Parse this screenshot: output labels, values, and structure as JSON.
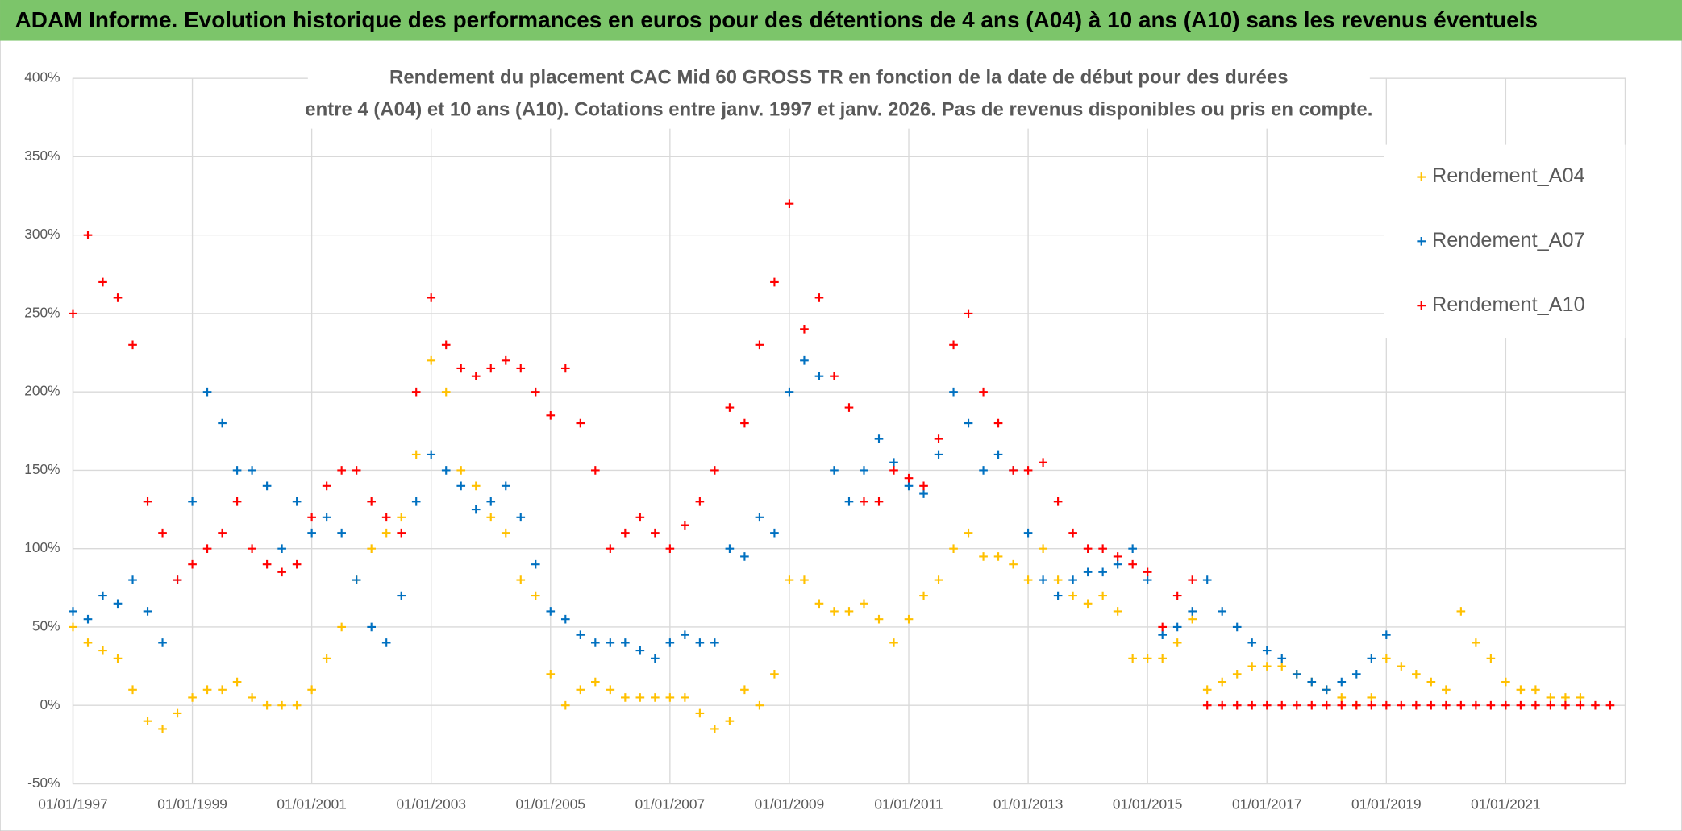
{
  "header": {
    "title": "ADAM Informe. Evolution historique des performances en euros pour des détentions de 4 ans (A04) à 10 ans (A10) sans les revenus éventuels"
  },
  "chart_data": {
    "type": "scatter",
    "title": [
      "Rendement du placement CAC Mid 60 GROSS TR en fonction de la date de début pour des durées",
      "entre 4 (A04) et 10 ans (A10). Cotations entre janv. 1997 et janv. 2026. Pas de revenus disponibles ou pris en compte."
    ],
    "x": [
      "01/01/1997",
      "01/04/1997",
      "01/07/1997",
      "01/10/1997",
      "01/01/1998",
      "01/04/1998",
      "01/07/1998",
      "01/10/1998",
      "01/01/1999",
      "01/04/1999",
      "01/07/1999",
      "01/10/1999",
      "01/01/2000",
      "01/04/2000",
      "01/07/2000",
      "01/10/2000",
      "01/01/2001",
      "01/04/2001",
      "01/07/2001",
      "01/10/2001",
      "01/01/2002",
      "01/04/2002",
      "01/07/2002",
      "01/10/2002",
      "01/01/2003",
      "01/04/2003",
      "01/07/2003",
      "01/10/2003",
      "01/01/2004",
      "01/04/2004",
      "01/07/2004",
      "01/10/2004",
      "01/01/2005",
      "01/04/2005",
      "01/07/2005",
      "01/10/2005",
      "01/01/2006",
      "01/04/2006",
      "01/07/2006",
      "01/10/2006",
      "01/01/2007",
      "01/04/2007",
      "01/07/2007",
      "01/10/2007",
      "01/01/2008",
      "01/04/2008",
      "01/07/2008",
      "01/10/2008",
      "01/01/2009",
      "01/04/2009",
      "01/07/2009",
      "01/10/2009",
      "01/01/2010",
      "01/04/2010",
      "01/07/2010",
      "01/10/2010",
      "01/01/2011",
      "01/04/2011",
      "01/07/2011",
      "01/10/2011",
      "01/01/2012",
      "01/04/2012",
      "01/07/2012",
      "01/10/2012",
      "01/01/2013",
      "01/04/2013",
      "01/07/2013",
      "01/10/2013",
      "01/01/2014",
      "01/04/2014",
      "01/07/2014",
      "01/10/2014",
      "01/01/2015",
      "01/04/2015",
      "01/07/2015",
      "01/10/2015",
      "01/01/2016",
      "01/04/2016",
      "01/07/2016",
      "01/10/2016",
      "01/01/2017",
      "01/04/2017",
      "01/07/2017",
      "01/10/2017",
      "01/01/2018",
      "01/04/2018",
      "01/07/2018",
      "01/10/2018",
      "01/01/2019",
      "01/04/2019",
      "01/07/2019",
      "01/10/2019",
      "01/01/2020",
      "01/04/2020",
      "01/07/2020",
      "01/10/2020",
      "01/01/2021",
      "01/04/2021",
      "01/07/2021",
      "01/10/2021",
      "01/01/2022",
      "01/04/2022",
      "01/07/2022",
      "01/10/2022"
    ],
    "series": [
      {
        "name": "Rendement_A04",
        "color": "#ffc000",
        "values": [
          50,
          40,
          35,
          30,
          10,
          -10,
          -15,
          -5,
          5,
          10,
          10,
          15,
          5,
          0,
          0,
          0,
          10,
          30,
          50,
          80,
          100,
          110,
          120,
          160,
          220,
          200,
          150,
          140,
          120,
          110,
          80,
          70,
          20,
          0,
          10,
          15,
          10,
          5,
          5,
          5,
          5,
          5,
          -5,
          -15,
          -10,
          10,
          0,
          20,
          80,
          80,
          65,
          60,
          60,
          65,
          55,
          40,
          55,
          70,
          80,
          100,
          110,
          95,
          95,
          90,
          80,
          100,
          80,
          70,
          65,
          70,
          60,
          30,
          30,
          30,
          40,
          55,
          10,
          15,
          20,
          25,
          25,
          25,
          20,
          15,
          10,
          5,
          0,
          5,
          30,
          25,
          20,
          15,
          10,
          60,
          40,
          30,
          15,
          10,
          10,
          5,
          5,
          5,
          null,
          null
        ]
      },
      {
        "name": "Rendement_A07",
        "color": "#0070c0",
        "values": [
          60,
          55,
          70,
          65,
          80,
          60,
          40,
          80,
          130,
          200,
          180,
          150,
          150,
          140,
          100,
          130,
          110,
          120,
          110,
          80,
          50,
          40,
          70,
          130,
          160,
          150,
          140,
          125,
          130,
          140,
          120,
          90,
          60,
          55,
          45,
          40,
          40,
          40,
          35,
          30,
          40,
          45,
          40,
          40,
          100,
          95,
          120,
          110,
          200,
          220,
          210,
          150,
          130,
          150,
          170,
          155,
          140,
          135,
          160,
          200,
          180,
          150,
          160,
          150,
          110,
          80,
          70,
          80,
          85,
          85,
          90,
          100,
          80,
          45,
          50,
          60,
          80,
          60,
          50,
          40,
          35,
          30,
          20,
          15,
          10,
          15,
          20,
          30,
          45,
          null,
          null,
          null,
          null,
          null,
          null,
          null,
          null,
          null,
          null,
          null,
          null,
          null,
          null,
          null
        ]
      },
      {
        "name": "Rendement_A10",
        "color": "#ff0000",
        "values": [
          250,
          300,
          270,
          260,
          230,
          130,
          110,
          80,
          90,
          100,
          110,
          130,
          100,
          90,
          85,
          90,
          120,
          140,
          150,
          150,
          130,
          120,
          110,
          200,
          260,
          230,
          215,
          210,
          215,
          220,
          215,
          200,
          185,
          215,
          180,
          150,
          100,
          110,
          120,
          110,
          100,
          115,
          130,
          150,
          190,
          180,
          230,
          270,
          320,
          240,
          260,
          210,
          190,
          130,
          130,
          150,
          145,
          140,
          170,
          230,
          250,
          200,
          180,
          150,
          150,
          155,
          130,
          110,
          100,
          100,
          95,
          90,
          85,
          50,
          70,
          80,
          0,
          0,
          0,
          0,
          0,
          0,
          0,
          0,
          0,
          0,
          0,
          0,
          0,
          0,
          0,
          0,
          0,
          0,
          0,
          0,
          0,
          0,
          0,
          0,
          0,
          0,
          0,
          0
        ]
      }
    ],
    "xlim": [
      "01/01/1997",
      "01/01/2023"
    ],
    "xticks": [
      "01/01/1997",
      "01/01/1999",
      "01/01/2001",
      "01/01/2003",
      "01/01/2005",
      "01/01/2007",
      "01/01/2009",
      "01/01/2011",
      "01/01/2013",
      "01/01/2015",
      "01/01/2017",
      "01/01/2019",
      "01/01/2021"
    ],
    "ylim": [
      -50,
      400
    ],
    "yticks": [
      {
        "value": -50,
        "label": "-50%"
      },
      {
        "value": 0,
        "label": "0%"
      },
      {
        "value": 50,
        "label": "50%"
      },
      {
        "value": 100,
        "label": "100%"
      },
      {
        "value": 150,
        "label": "150%"
      },
      {
        "value": 200,
        "label": "200%"
      },
      {
        "value": 250,
        "label": "250%"
      },
      {
        "value": 300,
        "label": "300%"
      },
      {
        "value": 350,
        "label": "350%"
      },
      {
        "value": 400,
        "label": "400%"
      }
    ],
    "grid": true,
    "legend": "upper-right"
  }
}
